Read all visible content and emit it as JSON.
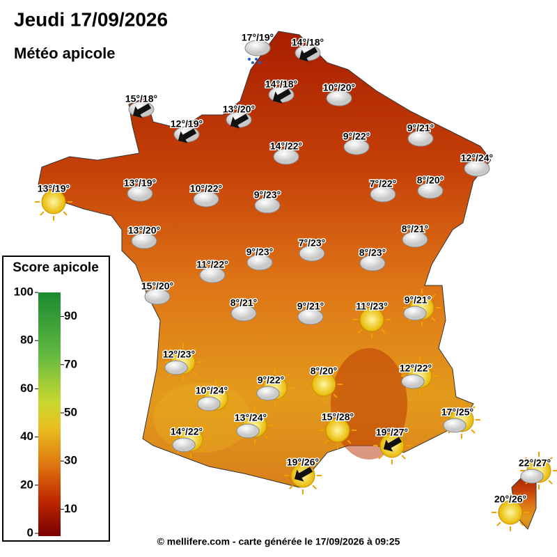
{
  "header": {
    "title": "Jeudi 17/09/2026",
    "subtitle": "Météo apicole"
  },
  "legend": {
    "title": "Score apicole",
    "lim": [
      0,
      100
    ],
    "ticks": [
      0,
      10,
      20,
      30,
      40,
      50,
      60,
      70,
      80,
      90,
      100
    ]
  },
  "cities": [
    {
      "label": "17°/19°"
    },
    {
      "label": "14°/18°"
    },
    {
      "label": "14°/18°"
    },
    {
      "label": "10°/20°"
    },
    {
      "label": "15°/18°"
    },
    {
      "label": "13°/20°"
    },
    {
      "label": "12°/19°"
    },
    {
      "label": "9°/22°"
    },
    {
      "label": "9°/21°"
    },
    {
      "label": "14°/22°"
    },
    {
      "label": "12°/24°"
    },
    {
      "label": "13°/19°"
    },
    {
      "label": "13°/19°"
    },
    {
      "label": "10°/22°"
    },
    {
      "label": "9°/23°"
    },
    {
      "label": "7°/22°"
    },
    {
      "label": "8°/20°"
    },
    {
      "label": "13°/20°"
    },
    {
      "label": "8°/21°"
    },
    {
      "label": "7°/23°"
    },
    {
      "label": "9°/23°"
    },
    {
      "label": "8°/23°"
    },
    {
      "label": "11°/22°"
    },
    {
      "label": "15°/20°"
    },
    {
      "label": "8°/21°"
    },
    {
      "label": "9°/21°"
    },
    {
      "label": "11°/23°"
    },
    {
      "label": "9°/21°"
    },
    {
      "label": "12°/23°"
    },
    {
      "label": "8°/20°"
    },
    {
      "label": "12°/22°"
    },
    {
      "label": "9°/22°"
    },
    {
      "label": "10°/24°"
    },
    {
      "label": "17°/25°"
    },
    {
      "label": "13°/24°"
    },
    {
      "label": "15°/28°"
    },
    {
      "label": "14°/22°"
    },
    {
      "label": "19°/27°"
    },
    {
      "label": "19°/26°"
    },
    {
      "label": "22°/27°"
    },
    {
      "label": "20°/26°"
    }
  ],
  "footer": "© mellifere.com - carte générée le 17/09/2026 à 09:25"
}
